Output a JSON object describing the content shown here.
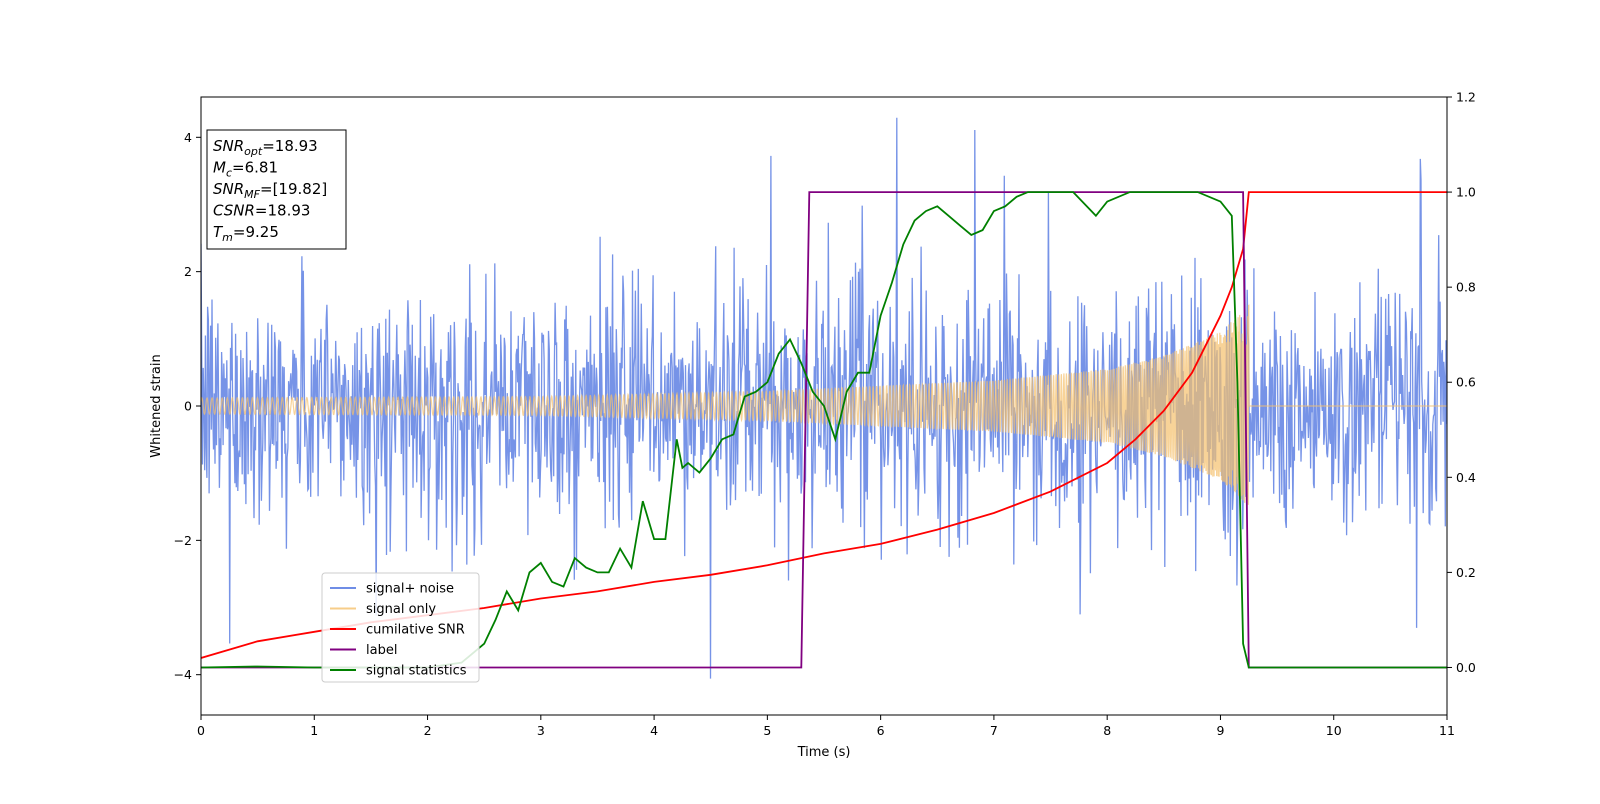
{
  "chart_data": {
    "type": "line",
    "xlabel": "Time (s)",
    "ylabel_left": "Whitened strain",
    "ylabel_right": "",
    "xlim": [
      0,
      11
    ],
    "ylim_left": [
      -4.6,
      4.6
    ],
    "ylim_right": [
      -0.1,
      1.2
    ],
    "x_ticks": [
      0,
      1,
      2,
      3,
      4,
      5,
      6,
      7,
      8,
      9,
      10,
      11
    ],
    "y_left_ticks": [
      -4,
      -2,
      0,
      2,
      4
    ],
    "y_right_ticks": [
      0.0,
      0.2,
      0.4,
      0.6,
      0.8,
      1.0,
      1.2
    ],
    "y_right_tick_labels": [
      "0.0",
      "0.2",
      "0.4",
      "0.6",
      "0.8",
      "1.0",
      "1.2"
    ],
    "grid": false,
    "legend_position": "lower-left",
    "info_box": [
      {
        "base": "SNR",
        "sub": "opt",
        "rest": "=18.93"
      },
      {
        "base": "M",
        "sub": "c",
        "rest": "=6.81"
      },
      {
        "base": "SNR",
        "sub": "MF",
        "rest": "=[19.82]"
      },
      {
        "base": "CSNR",
        "sub": "",
        "rest": "=18.93"
      },
      {
        "base": "T",
        "sub": "m",
        "rest": "=9.25"
      }
    ],
    "series": [
      {
        "name": "signal+ noise",
        "color": "#6f8de6",
        "axis": "left",
        "style": "noise",
        "noise_sigma": 0.85,
        "sample_dt": 0.0065
      },
      {
        "name": "signal only",
        "color": "#f5c16c",
        "axis": "left",
        "style": "chirp",
        "envelope": [
          [
            0,
            0.12
          ],
          [
            3,
            0.14
          ],
          [
            5,
            0.22
          ],
          [
            7,
            0.38
          ],
          [
            8,
            0.55
          ],
          [
            8.5,
            0.75
          ],
          [
            9.0,
            1.1
          ],
          [
            9.25,
            1.5
          ]
        ],
        "merger_time": 9.25
      },
      {
        "name": "cumilative SNR",
        "color": "#ff0000",
        "axis": "right",
        "style": "line",
        "x": [
          0,
          0.5,
          1,
          1.5,
          2,
          2.5,
          3,
          3.5,
          4,
          4.5,
          5,
          5.5,
          6,
          6.5,
          7,
          7.5,
          8,
          8.25,
          8.5,
          8.75,
          9.0,
          9.1,
          9.2,
          9.25,
          11
        ],
        "y": [
          0.02,
          0.055,
          0.075,
          0.095,
          0.11,
          0.125,
          0.145,
          0.16,
          0.18,
          0.195,
          0.215,
          0.24,
          0.26,
          0.29,
          0.325,
          0.37,
          0.43,
          0.48,
          0.54,
          0.62,
          0.74,
          0.8,
          0.88,
          1.0,
          1.0
        ]
      },
      {
        "name": "label",
        "color": "#800080",
        "axis": "right",
        "style": "line",
        "x": [
          0,
          5.3,
          5.37,
          9.2,
          9.25,
          11
        ],
        "y": [
          0,
          0,
          1.0,
          1.0,
          0,
          0
        ]
      },
      {
        "name": "signal statistics",
        "color": "#008000",
        "axis": "right",
        "style": "line",
        "x": [
          0,
          0.5,
          1,
          1.5,
          2,
          2.3,
          2.4,
          2.5,
          2.6,
          2.7,
          2.8,
          2.9,
          3.0,
          3.1,
          3.2,
          3.3,
          3.4,
          3.5,
          3.6,
          3.7,
          3.8,
          3.9,
          4.0,
          4.1,
          4.2,
          4.25,
          4.3,
          4.4,
          4.5,
          4.6,
          4.7,
          4.8,
          4.9,
          5.0,
          5.1,
          5.2,
          5.3,
          5.4,
          5.5,
          5.6,
          5.7,
          5.8,
          5.9,
          6.0,
          6.1,
          6.2,
          6.3,
          6.4,
          6.5,
          6.6,
          6.7,
          6.8,
          6.9,
          7.0,
          7.1,
          7.2,
          7.3,
          7.5,
          7.7,
          7.9,
          8.0,
          8.2,
          8.5,
          8.8,
          9.0,
          9.1,
          9.15,
          9.2,
          9.25,
          9.3,
          11
        ],
        "y": [
          0,
          0.002,
          0.0,
          0.0,
          0.0,
          0.01,
          0.03,
          0.05,
          0.1,
          0.16,
          0.12,
          0.2,
          0.22,
          0.18,
          0.17,
          0.23,
          0.21,
          0.2,
          0.2,
          0.25,
          0.21,
          0.35,
          0.27,
          0.27,
          0.48,
          0.42,
          0.43,
          0.41,
          0.44,
          0.48,
          0.49,
          0.57,
          0.58,
          0.6,
          0.66,
          0.69,
          0.64,
          0.58,
          0.55,
          0.48,
          0.58,
          0.62,
          0.62,
          0.74,
          0.81,
          0.89,
          0.94,
          0.96,
          0.97,
          0.95,
          0.93,
          0.91,
          0.92,
          0.96,
          0.97,
          0.99,
          1.0,
          1.0,
          1.0,
          0.95,
          0.98,
          1.0,
          1.0,
          1.0,
          0.98,
          0.95,
          0.6,
          0.05,
          0.0,
          0.0,
          0.0
        ]
      }
    ]
  }
}
